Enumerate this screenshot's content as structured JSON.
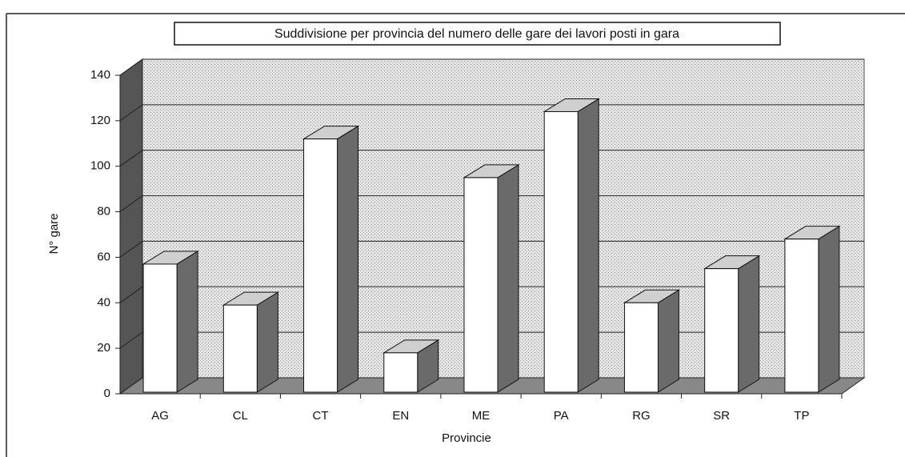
{
  "chart_data": {
    "type": "bar",
    "title": "Suddivisione per provincia del numero delle gare dei lavori posti in gara",
    "x_label": "Provincie",
    "y_label": "N° gare",
    "categories": [
      "AG",
      "CL",
      "CT",
      "EN",
      "ME",
      "PA",
      "RG",
      "SR",
      "TP"
    ],
    "values": [
      57,
      39,
      112,
      18,
      95,
      124,
      40,
      55,
      68
    ],
    "color": "#ffffff",
    "ylim": [
      0,
      140
    ],
    "yticks": [
      0,
      20,
      40,
      60,
      80,
      100,
      120,
      140
    ],
    "grid": true
  }
}
